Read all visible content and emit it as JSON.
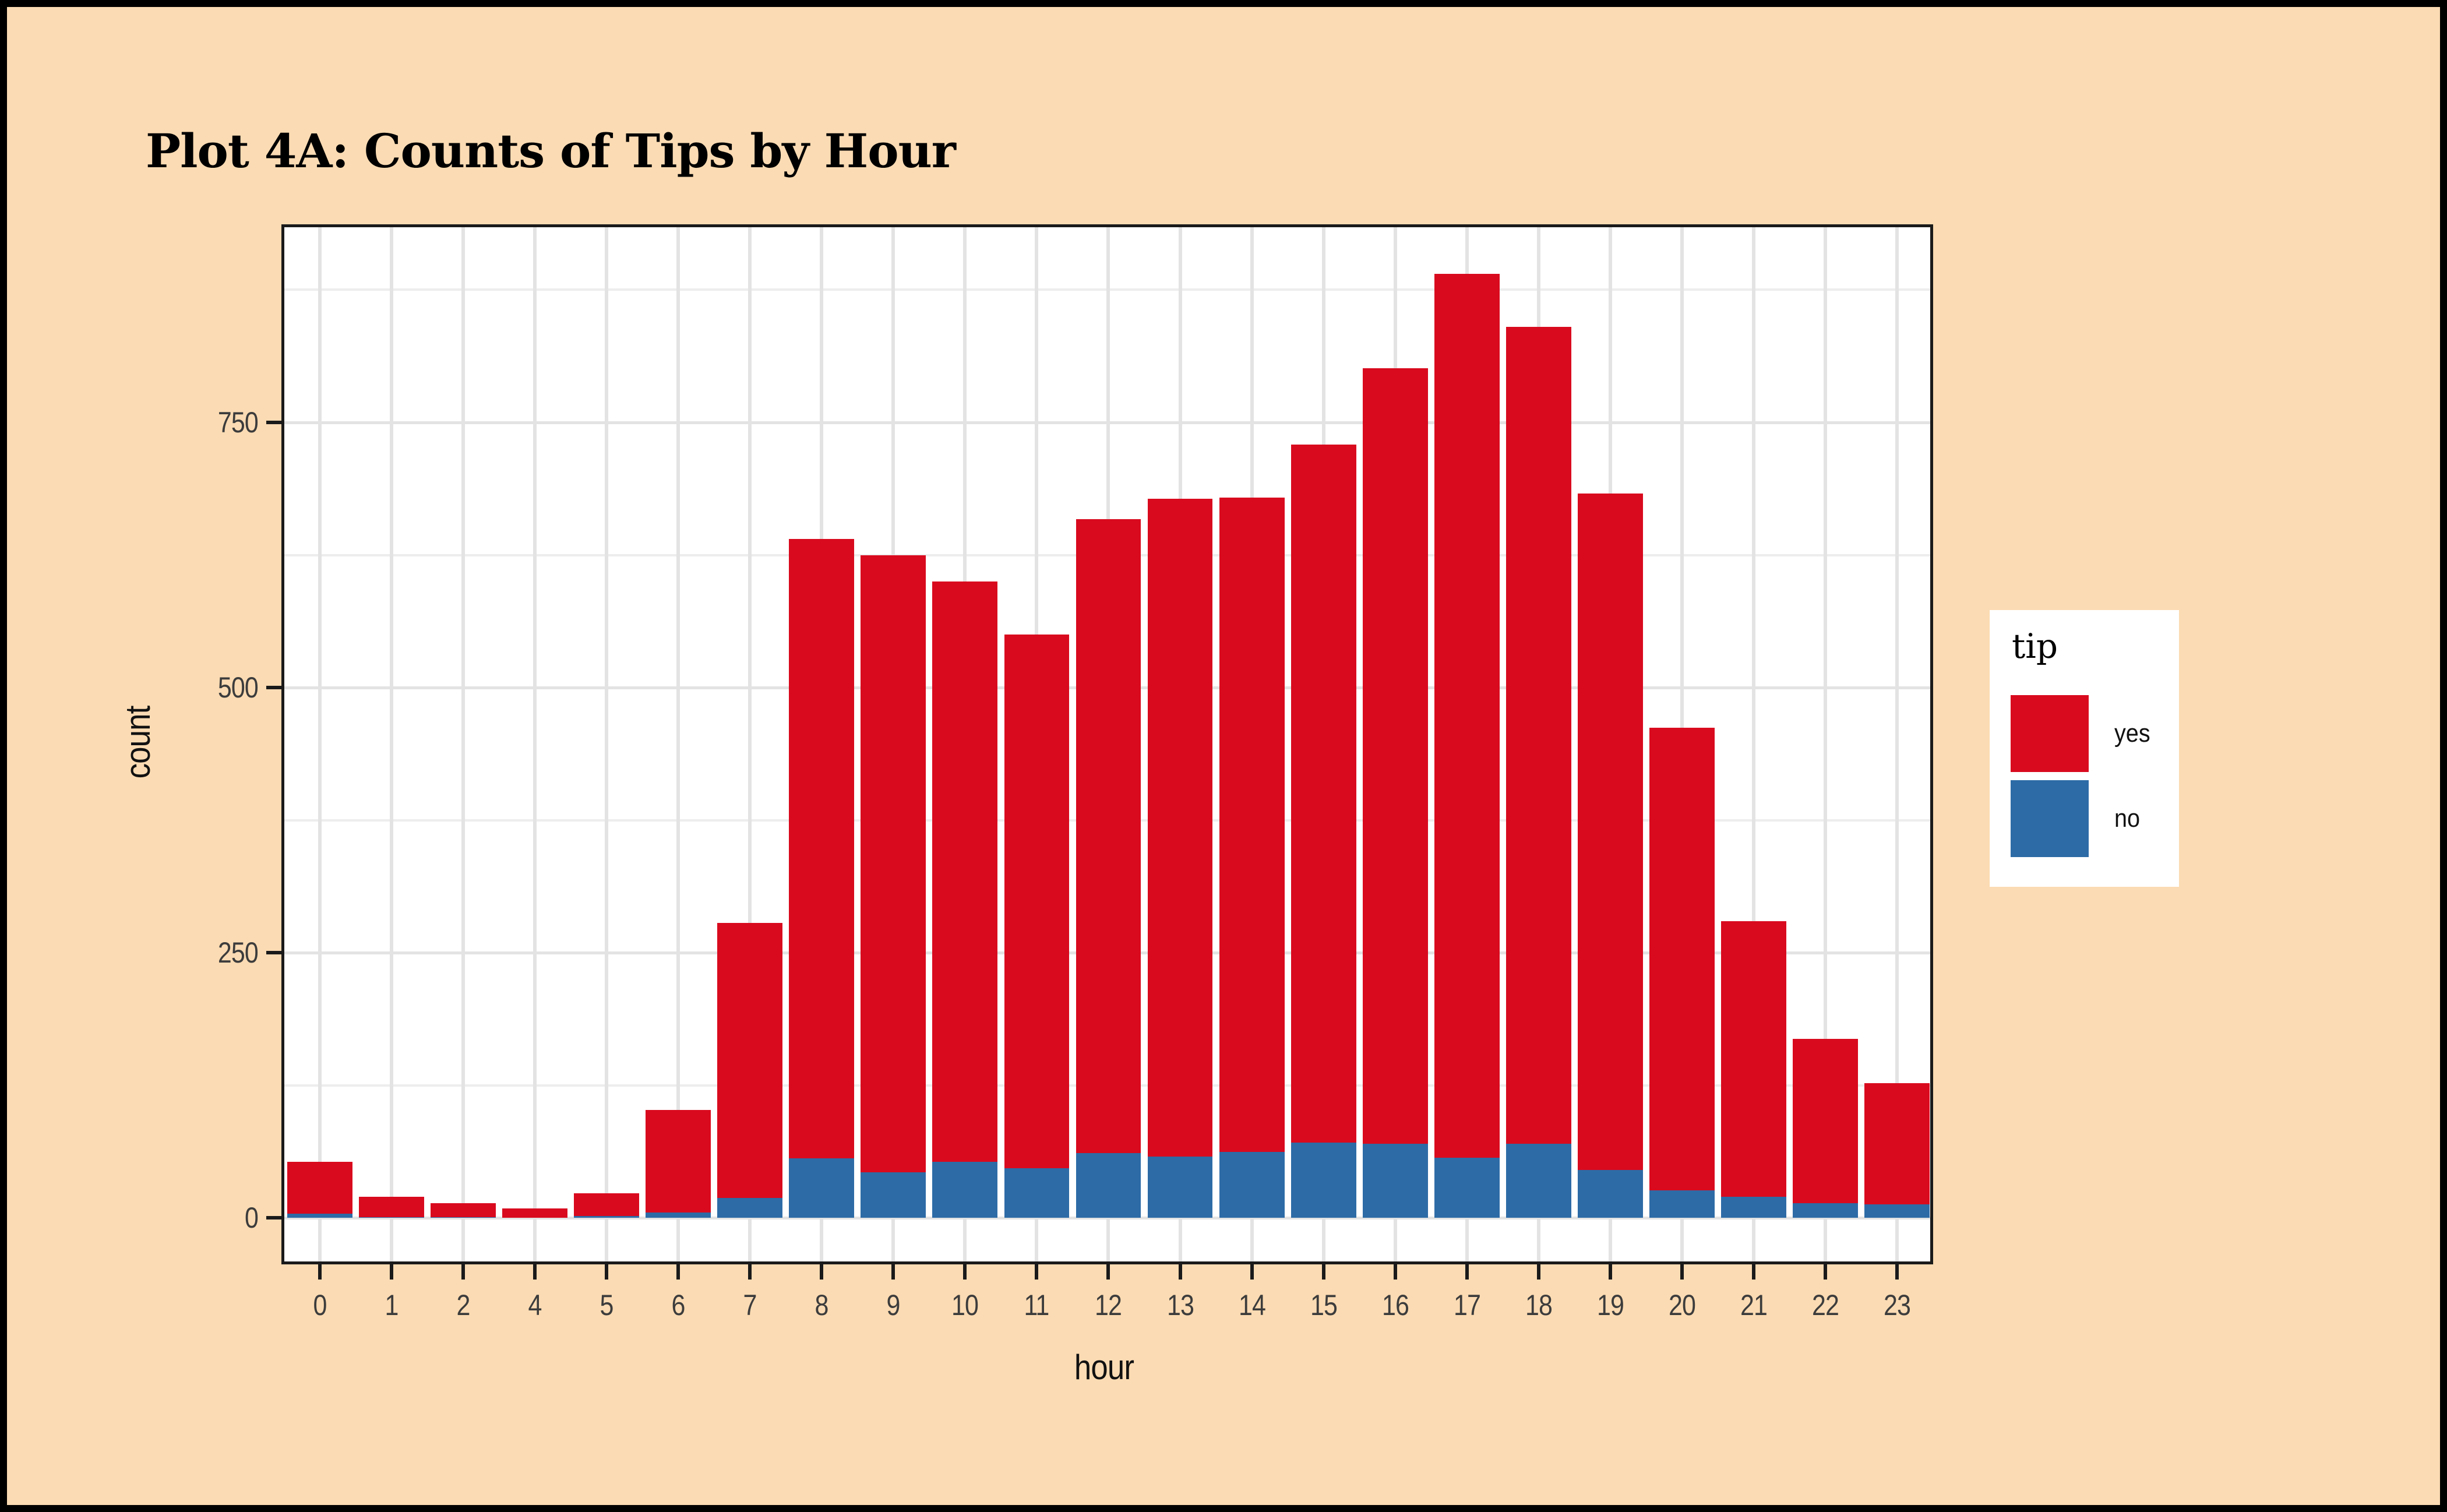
{
  "title": "Plot 4A: Counts of Tips by Hour",
  "colors": {
    "background": "#fbdbb3",
    "frame": "#000000",
    "panel": "#ffffff",
    "panel_border": "#1a1a1a",
    "grid_major": "#e3e3e3",
    "grid_minor": "#ededed",
    "tick_text": "#3c3c3c",
    "red": "#d90a1e",
    "blue": "#2d6ba6"
  },
  "chart_data": {
    "type": "bar",
    "stacked": true,
    "title": "Plot 4A: Counts of Tips by Hour",
    "xlabel": "hour",
    "ylabel": "count",
    "grid": true,
    "categories": [
      "0",
      "1",
      "2",
      "4",
      "5",
      "6",
      "7",
      "8",
      "9",
      "10",
      "11",
      "12",
      "13",
      "14",
      "15",
      "16",
      "17",
      "18",
      "19",
      "20",
      "21",
      "22",
      "23"
    ],
    "series": [
      {
        "name": "yes",
        "color": "#d90a1e",
        "values": [
          49,
          19,
          13,
          9,
          21,
          97,
          259,
          584,
          582,
          547,
          503,
          598,
          620,
          617,
          658,
          731,
          833,
          770,
          638,
          436,
          260,
          155,
          114
        ]
      },
      {
        "name": "no",
        "color": "#2d6ba6",
        "values": [
          4,
          1,
          1,
          0,
          2,
          5,
          19,
          56,
          43,
          53,
          47,
          61,
          58,
          62,
          71,
          70,
          57,
          70,
          45,
          26,
          20,
          14,
          13
        ]
      }
    ],
    "totals": [
      53,
      20,
      14,
      9,
      23,
      102,
      278,
      640,
      625,
      600,
      550,
      659,
      678,
      679,
      729,
      801,
      890,
      840,
      683,
      462,
      280,
      169,
      127
    ],
    "y_axis": {
      "ticks": [
        0,
        250,
        500,
        750
      ],
      "minor": [
        125,
        375,
        625,
        875
      ],
      "lim": [
        -41,
        934
      ]
    },
    "legend": {
      "title": "tip",
      "position": "right",
      "items": [
        {
          "label": "yes",
          "color": "#d90a1e"
        },
        {
          "label": "no",
          "color": "#2d6ba6"
        }
      ]
    }
  }
}
